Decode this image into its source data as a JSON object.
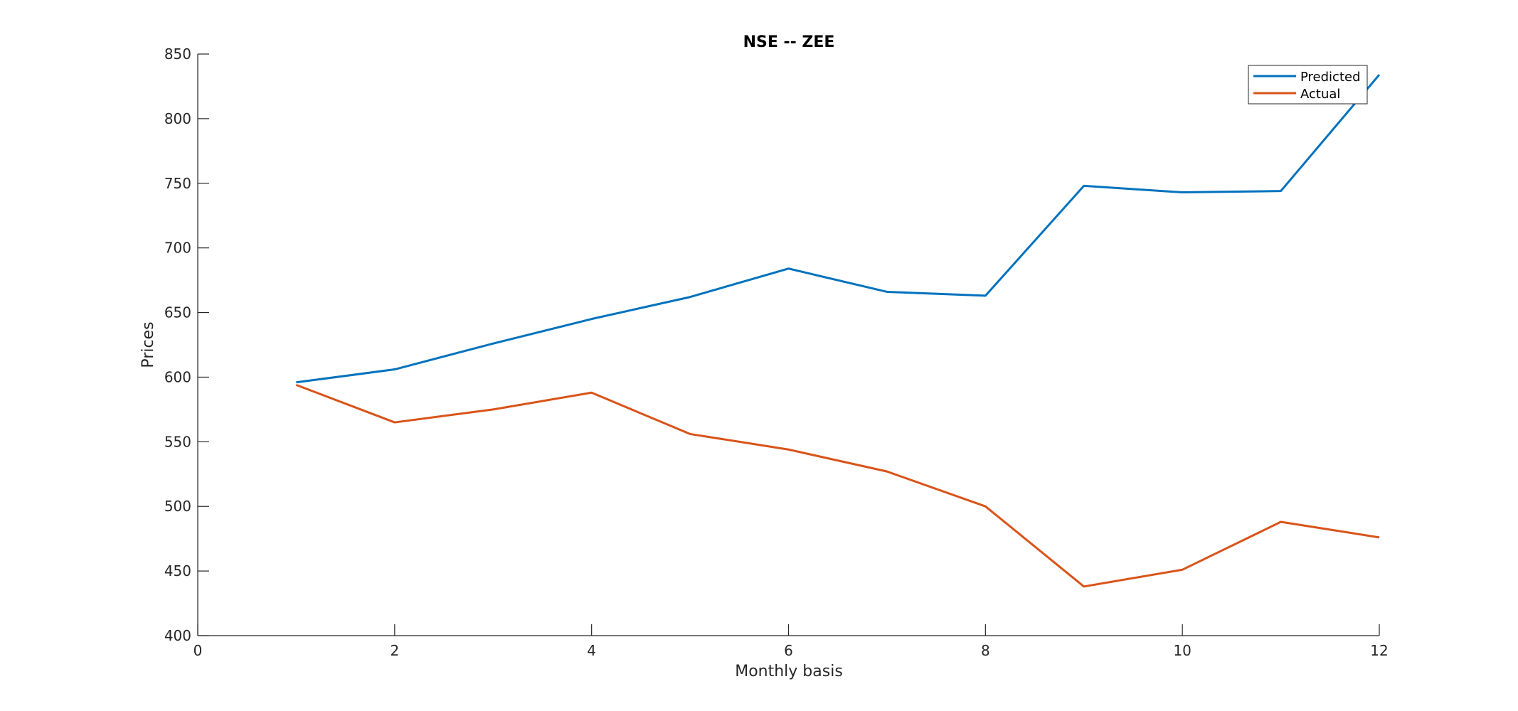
{
  "chart_data": {
    "type": "line",
    "title": "NSE -- ZEE",
    "xlabel": "Monthly basis",
    "ylabel": "Prices",
    "xlim": [
      0,
      12
    ],
    "ylim": [
      400,
      850
    ],
    "xticks": [
      0,
      2,
      4,
      6,
      8,
      10,
      12
    ],
    "yticks": [
      400,
      450,
      500,
      550,
      600,
      650,
      700,
      750,
      800,
      850
    ],
    "grid": false,
    "legend_position": "top-right",
    "x": [
      1,
      2,
      3,
      4,
      5,
      6,
      7,
      8,
      9,
      10,
      11,
      12
    ],
    "series": [
      {
        "name": "Predicted",
        "color": "#0072BD",
        "values": [
          596,
          606,
          626,
          645,
          662,
          684,
          666,
          663,
          748,
          743,
          744,
          834
        ]
      },
      {
        "name": "Actual",
        "color": "#D95319",
        "values": [
          594,
          565,
          575,
          588,
          556,
          544,
          527,
          500,
          438,
          451,
          488,
          476
        ]
      }
    ]
  }
}
